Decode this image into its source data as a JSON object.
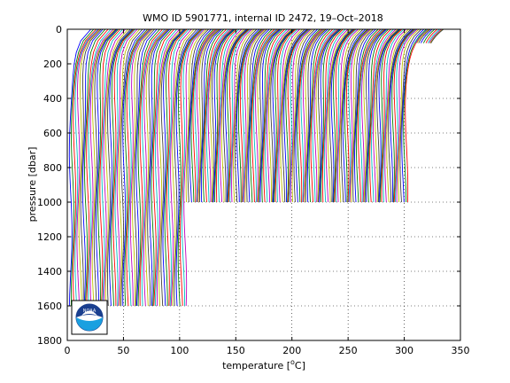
{
  "chart_data": {
    "type": "line",
    "title": "WMO ID 5901771, internal ID 2472, 19–Oct–2018",
    "xlabel_main": "temperature [",
    "xlabel_unit": "C]",
    "xlabel_degree": "o",
    "ylabel": "pressure [dbar]",
    "xlim": [
      0,
      350
    ],
    "ylim": [
      0,
      1800
    ],
    "y_reversed": true,
    "xticks": [
      0,
      50,
      100,
      150,
      200,
      250,
      300,
      350
    ],
    "yticks": [
      0,
      200,
      400,
      600,
      800,
      1000,
      1200,
      1400,
      1600,
      1800
    ],
    "grid": true,
    "grid_style": "dotted",
    "description": "Waterfall plot of offset temperature profiles, one per cycle, each shifted horizontally",
    "profile_groups": [
      {
        "x_start": 1,
        "x_end": 104,
        "step": 1.7,
        "max_pressure": 1600
      },
      {
        "x_start": 105,
        "x_end": 300,
        "step": 1.5,
        "max_pressure": 1000
      },
      {
        "x_start": 300,
        "x_end": 316,
        "step": 1.5,
        "max_pressure": 80
      }
    ],
    "series_colors": [
      "#0000ff",
      "#008000",
      "#ff0000",
      "#00bfbf",
      "#bf00bf",
      "#bfbf00",
      "#404040"
    ],
    "logo": "noaa-logo"
  }
}
